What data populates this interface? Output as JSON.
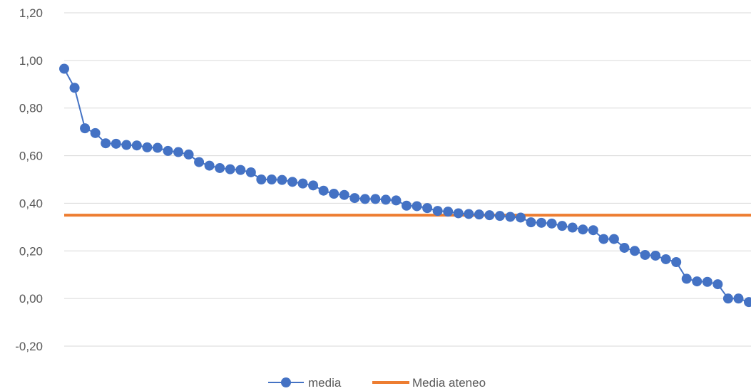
{
  "chart_data": {
    "type": "line",
    "title": "",
    "xlabel": "",
    "ylabel": "",
    "ylim": [
      -0.2,
      1.2
    ],
    "y_ticks": [
      "-0,20",
      "0,00",
      "0,20",
      "0,40",
      "0,60",
      "0,80",
      "1,00",
      "1,20"
    ],
    "grid": true,
    "legend_position": "bottom",
    "series": [
      {
        "name": "media",
        "color": "#4472c4",
        "marker": "circle",
        "values": [
          0.965,
          0.885,
          0.715,
          0.695,
          0.652,
          0.65,
          0.645,
          0.643,
          0.635,
          0.633,
          0.62,
          0.615,
          0.605,
          0.573,
          0.558,
          0.548,
          0.543,
          0.54,
          0.53,
          0.5,
          0.5,
          0.498,
          0.49,
          0.483,
          0.475,
          0.453,
          0.44,
          0.435,
          0.422,
          0.418,
          0.418,
          0.415,
          0.412,
          0.39,
          0.388,
          0.38,
          0.368,
          0.365,
          0.358,
          0.355,
          0.353,
          0.35,
          0.347,
          0.343,
          0.34,
          0.32,
          0.318,
          0.315,
          0.305,
          0.298,
          0.29,
          0.287,
          0.25,
          0.25,
          0.213,
          0.2,
          0.183,
          0.18,
          0.165,
          0.153,
          0.083,
          0.072,
          0.07,
          0.06,
          0.0,
          0.0,
          -0.015
        ]
      },
      {
        "name": "Media ateneo",
        "color": "#ed7d31",
        "constant": 0.35
      }
    ]
  }
}
